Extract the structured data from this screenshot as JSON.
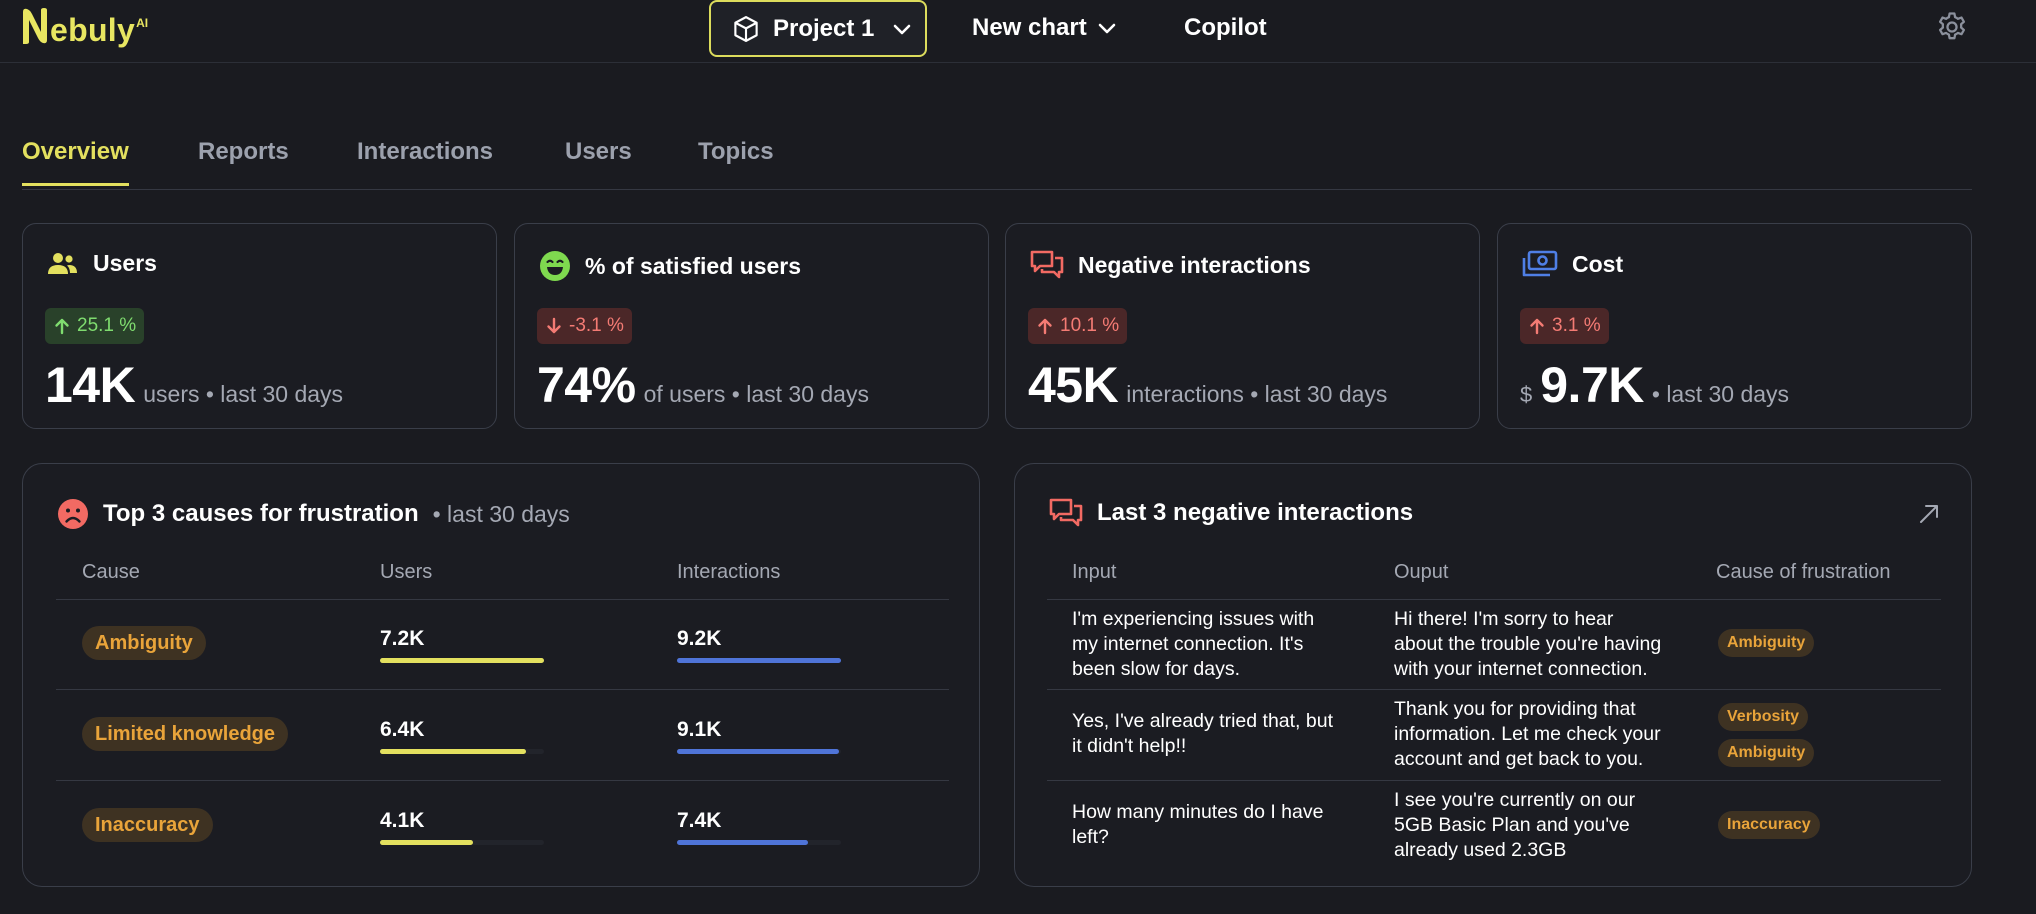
{
  "app": {
    "logo_text": "ebuly",
    "logo_super": "AI"
  },
  "topbar": {
    "project_label": "Project 1",
    "new_chart_label": "New chart",
    "copilot_label": "Copilot"
  },
  "tabs": [
    {
      "label": "Overview",
      "active": true
    },
    {
      "label": "Reports"
    },
    {
      "label": "Interactions"
    },
    {
      "label": "Users"
    },
    {
      "label": "Topics"
    }
  ],
  "stats": [
    {
      "title": "Users",
      "icon": "users-icon",
      "change": "25.1 %",
      "direction": "up",
      "tone": "positive",
      "value": "14K",
      "prefix": "",
      "suffix": "users • last 30 days"
    },
    {
      "title": "% of satisfied users",
      "icon": "smiley-icon",
      "change": "-3.1 %",
      "direction": "down",
      "tone": "negative",
      "value": "74%",
      "prefix": "",
      "suffix": "of users • last 30 days"
    },
    {
      "title": "Negative interactions",
      "icon": "chat-bubbles-icon",
      "change": "10.1 %",
      "direction": "up",
      "tone": "negative",
      "value": "45K",
      "prefix": "",
      "suffix": "interactions • last 30 days"
    },
    {
      "title": "Cost",
      "icon": "money-icon",
      "change": "3.1 %",
      "direction": "up",
      "tone": "negative",
      "value": "9.7K",
      "prefix": "$",
      "suffix": "• last 30 days"
    }
  ],
  "frustration": {
    "title": "Top 3 causes for frustration",
    "subtitle": "• last 30 days",
    "columns": [
      "Cause",
      "Users",
      "Interactions"
    ],
    "rows": [
      {
        "cause": "Ambiguity",
        "users": "7.2K",
        "users_fraction": 1.0,
        "interactions": "9.2K",
        "interactions_fraction": 1.0
      },
      {
        "cause": "Limited knowledge",
        "users": "6.4K",
        "users_fraction": 0.89,
        "interactions": "9.1K",
        "interactions_fraction": 0.99
      },
      {
        "cause": "Inaccuracy",
        "users": "4.1K",
        "users_fraction": 0.57,
        "interactions": "7.4K",
        "interactions_fraction": 0.8
      }
    ],
    "colors": {
      "users_bar": "#e3e05f",
      "interactions_bar": "#4f74d8"
    }
  },
  "negative": {
    "title": "Last 3 negative interactions",
    "columns": [
      "Input",
      "Ouput",
      "Cause of frustration"
    ],
    "rows": [
      {
        "input": "I'm experiencing issues with my internet connection. It's been slow for days.",
        "output": "Hi there! I'm sorry to hear about the trouble you're having with your internet connection.",
        "causes": [
          "Ambiguity"
        ]
      },
      {
        "input": "Yes, I've already tried that, but it didn't help!!",
        "output": "Thank you for providing that information. Let me check your account and get back to you.",
        "causes": [
          "Verbosity",
          "Ambiguity"
        ]
      },
      {
        "input": "How many minutes do I have left?",
        "output": "I see you're currently on our 5GB Basic Plan and you've already used 2.3GB",
        "causes": [
          "Inaccuracy"
        ]
      }
    ]
  }
}
